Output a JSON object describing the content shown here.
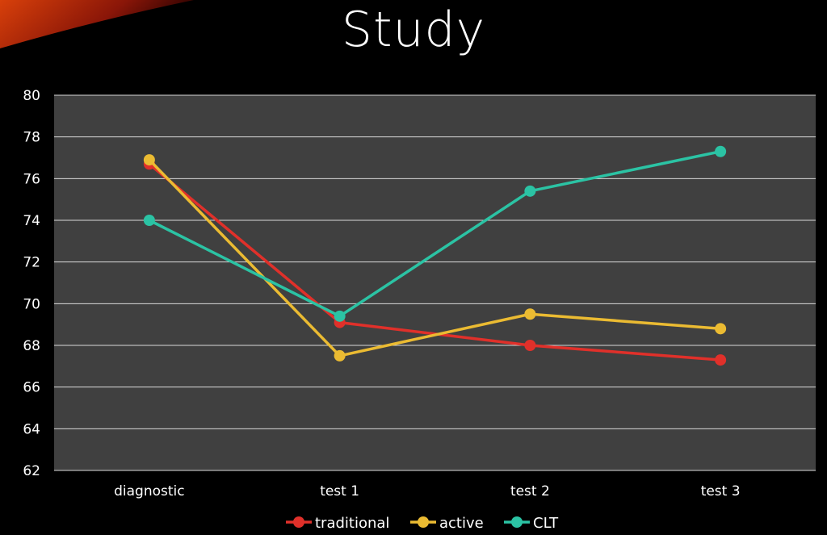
{
  "chart_data": {
    "type": "line",
    "title": "Study",
    "xlabel": "",
    "ylabel": "",
    "categories": [
      "diagnostic",
      "test 1",
      "test 2",
      "test 3"
    ],
    "ylim": [
      62,
      80
    ],
    "yticks": [
      62,
      64,
      66,
      68,
      70,
      72,
      74,
      76,
      78,
      80
    ],
    "grid": true,
    "legend_position": "bottom",
    "series": [
      {
        "name": "traditional",
        "color": "#e0302a",
        "values": [
          76.7,
          69.1,
          68.0,
          67.3
        ]
      },
      {
        "name": "active",
        "color": "#ebbb32",
        "values": [
          76.9,
          67.5,
          69.5,
          68.8
        ]
      },
      {
        "name": "CLT",
        "color": "#2bc3a4",
        "values": [
          74.0,
          69.4,
          75.4,
          77.3
        ]
      }
    ]
  }
}
